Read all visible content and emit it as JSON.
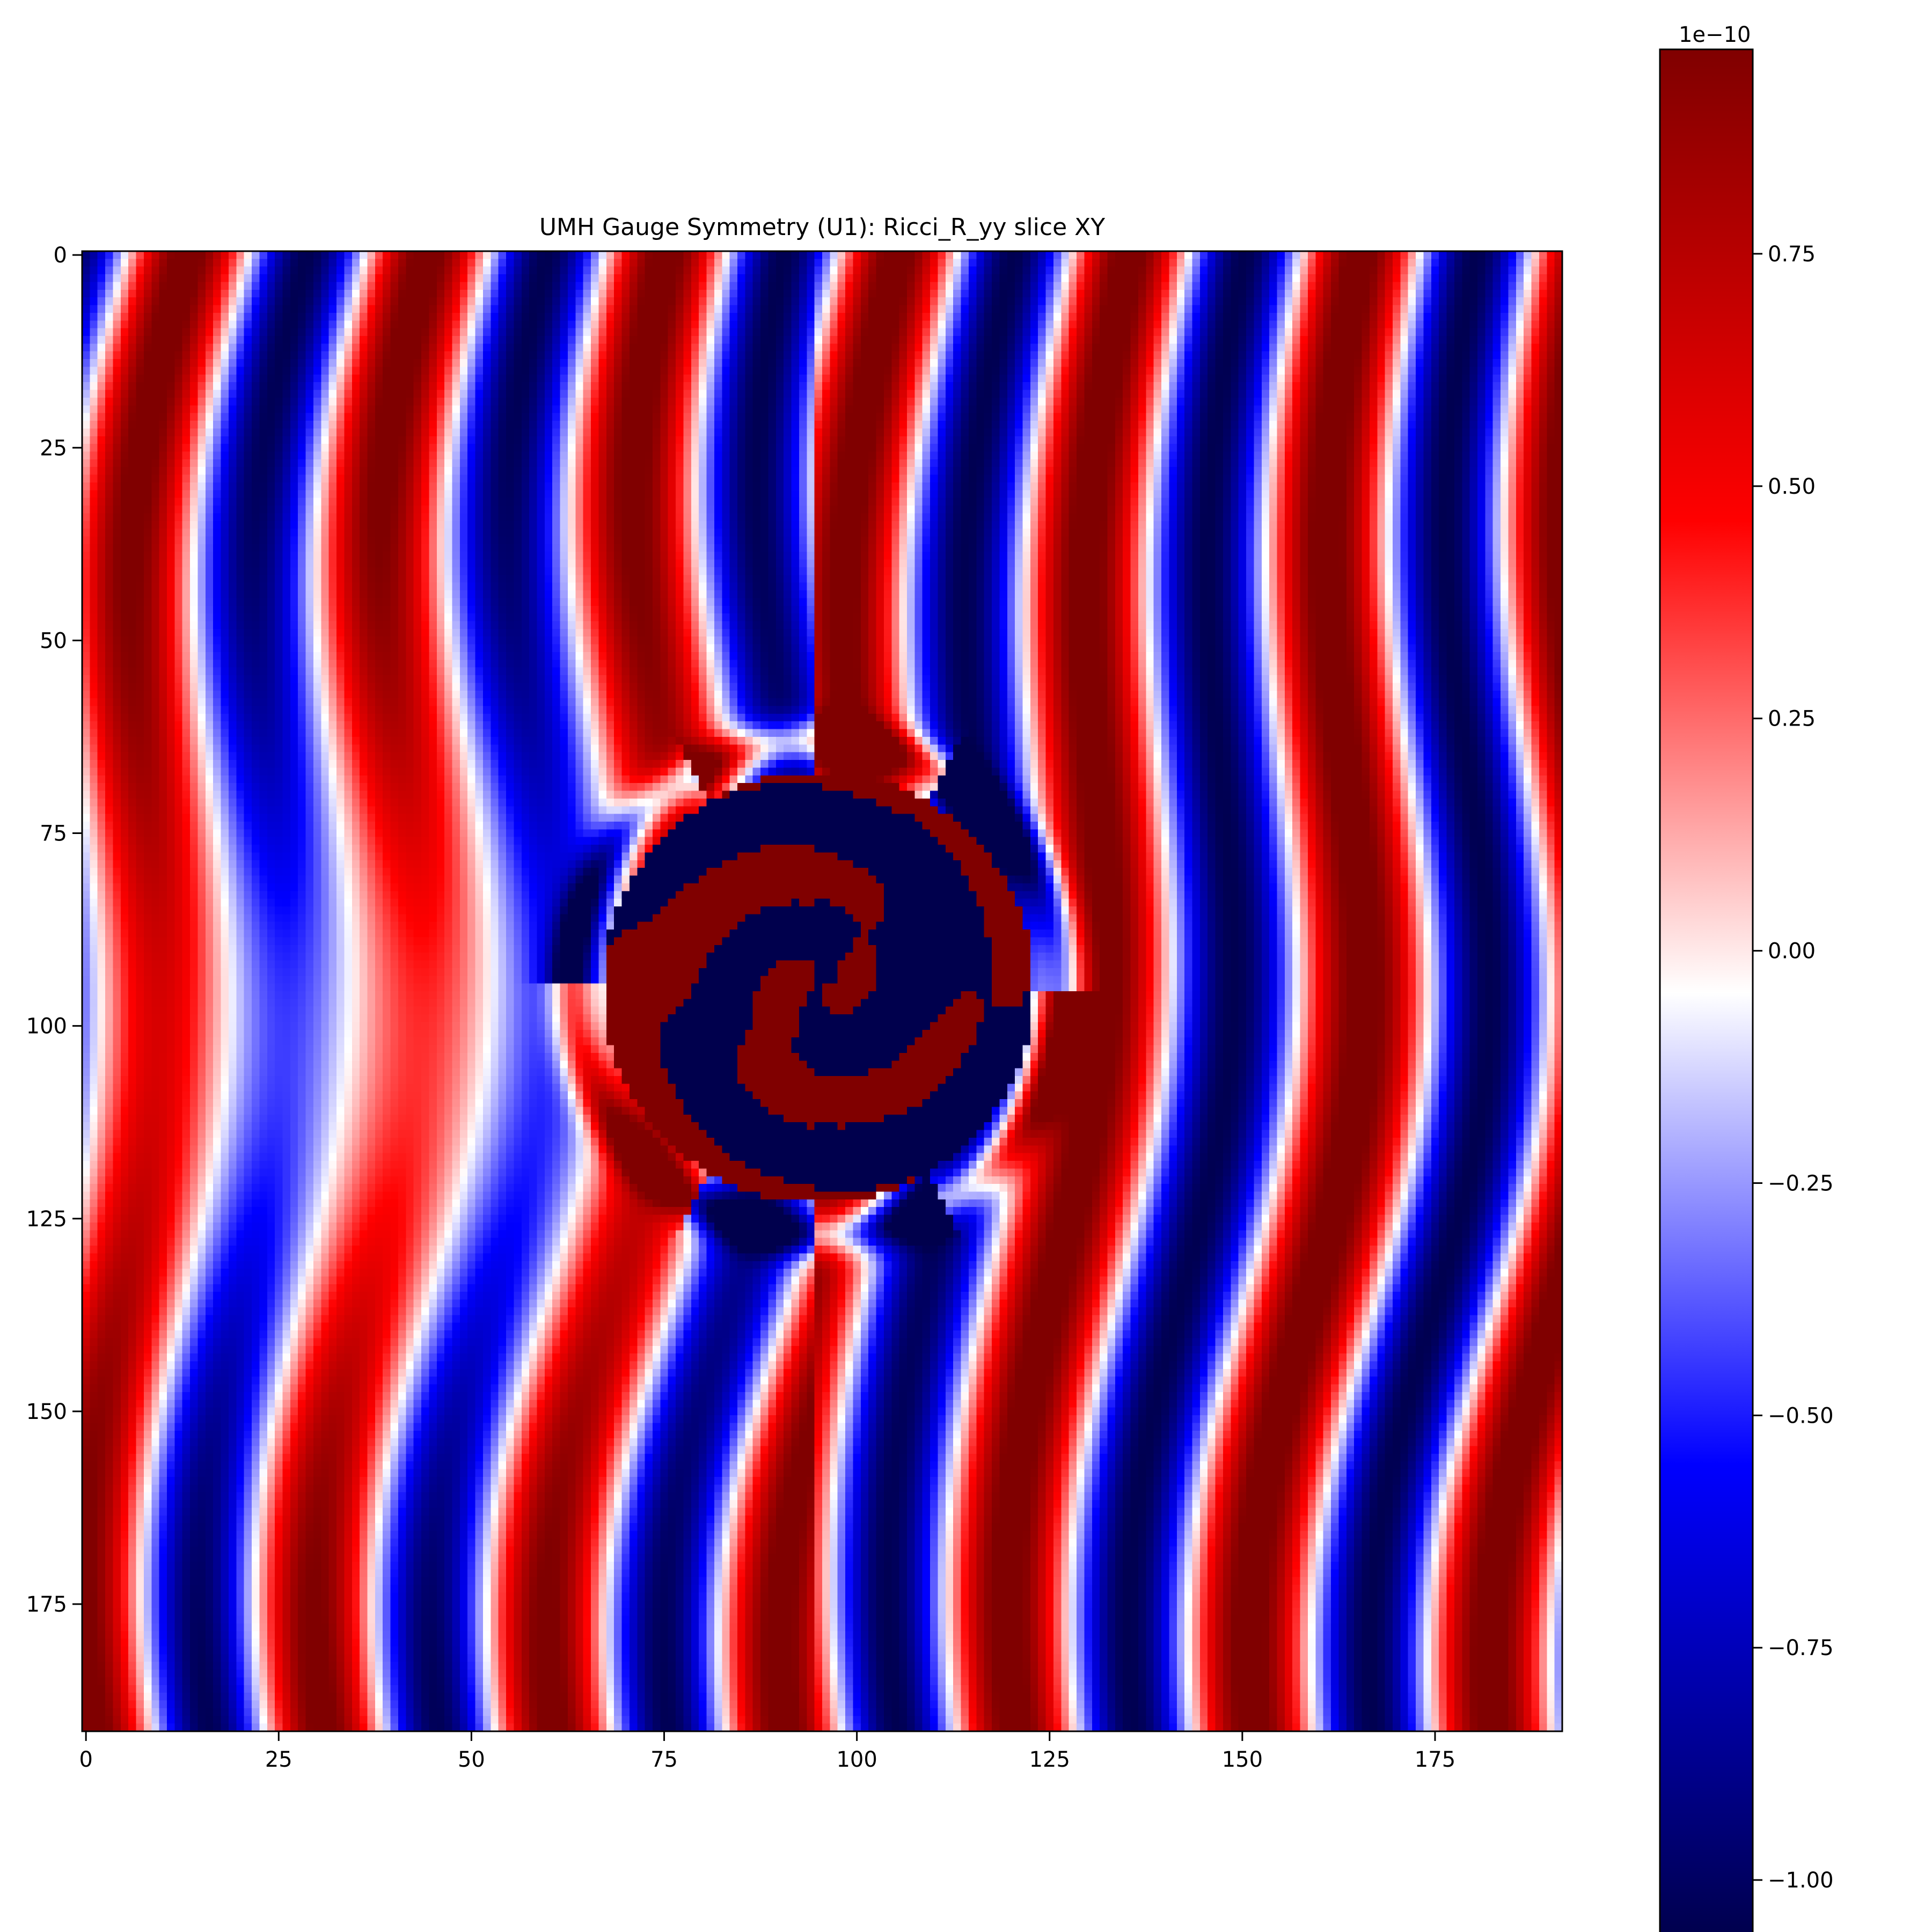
{
  "chart_data": {
    "type": "heatmap",
    "title": "UMH Gauge Symmetry (U1): Ricci_R_yy slice XY",
    "xlabel": "",
    "ylabel": "",
    "x_ticks": [
      0,
      25,
      50,
      75,
      100,
      125,
      150,
      175
    ],
    "y_ticks": [
      0,
      25,
      50,
      75,
      100,
      125,
      150,
      175
    ],
    "x_tick_labels": [
      "0",
      "25",
      "50",
      "75",
      "100",
      "125",
      "150",
      "175"
    ],
    "y_tick_labels": [
      "0",
      "25",
      "50",
      "75",
      "100",
      "125",
      "150",
      "175"
    ],
    "xlim": [
      -0.5,
      191.5
    ],
    "ylim": [
      191.5,
      -0.5
    ],
    "grid_size": [
      192,
      192
    ],
    "y_axis_inverted": true,
    "grid": false,
    "colormap": "seismic",
    "colormap_stops": [
      "#00004d",
      "#0000ff",
      "#ffffff",
      "#ff0000",
      "#800000"
    ],
    "colorbar": {
      "vmin": -1.06,
      "vmax": 0.97,
      "exponent_label": "1e−10",
      "ticks": [
        -1.0,
        -0.75,
        -0.5,
        -0.25,
        0.0,
        0.25,
        0.5,
        0.75
      ],
      "tick_labels": [
        "−1.00",
        "−0.75",
        "−0.50",
        "−0.25",
        "0.00",
        "0.25",
        "0.50",
        "0.75"
      ]
    },
    "field_description_values": {
      "background_wave_amplitude": 1.0,
      "central_blob_center": [
        95,
        95
      ],
      "central_blob_radius": 28
    }
  }
}
